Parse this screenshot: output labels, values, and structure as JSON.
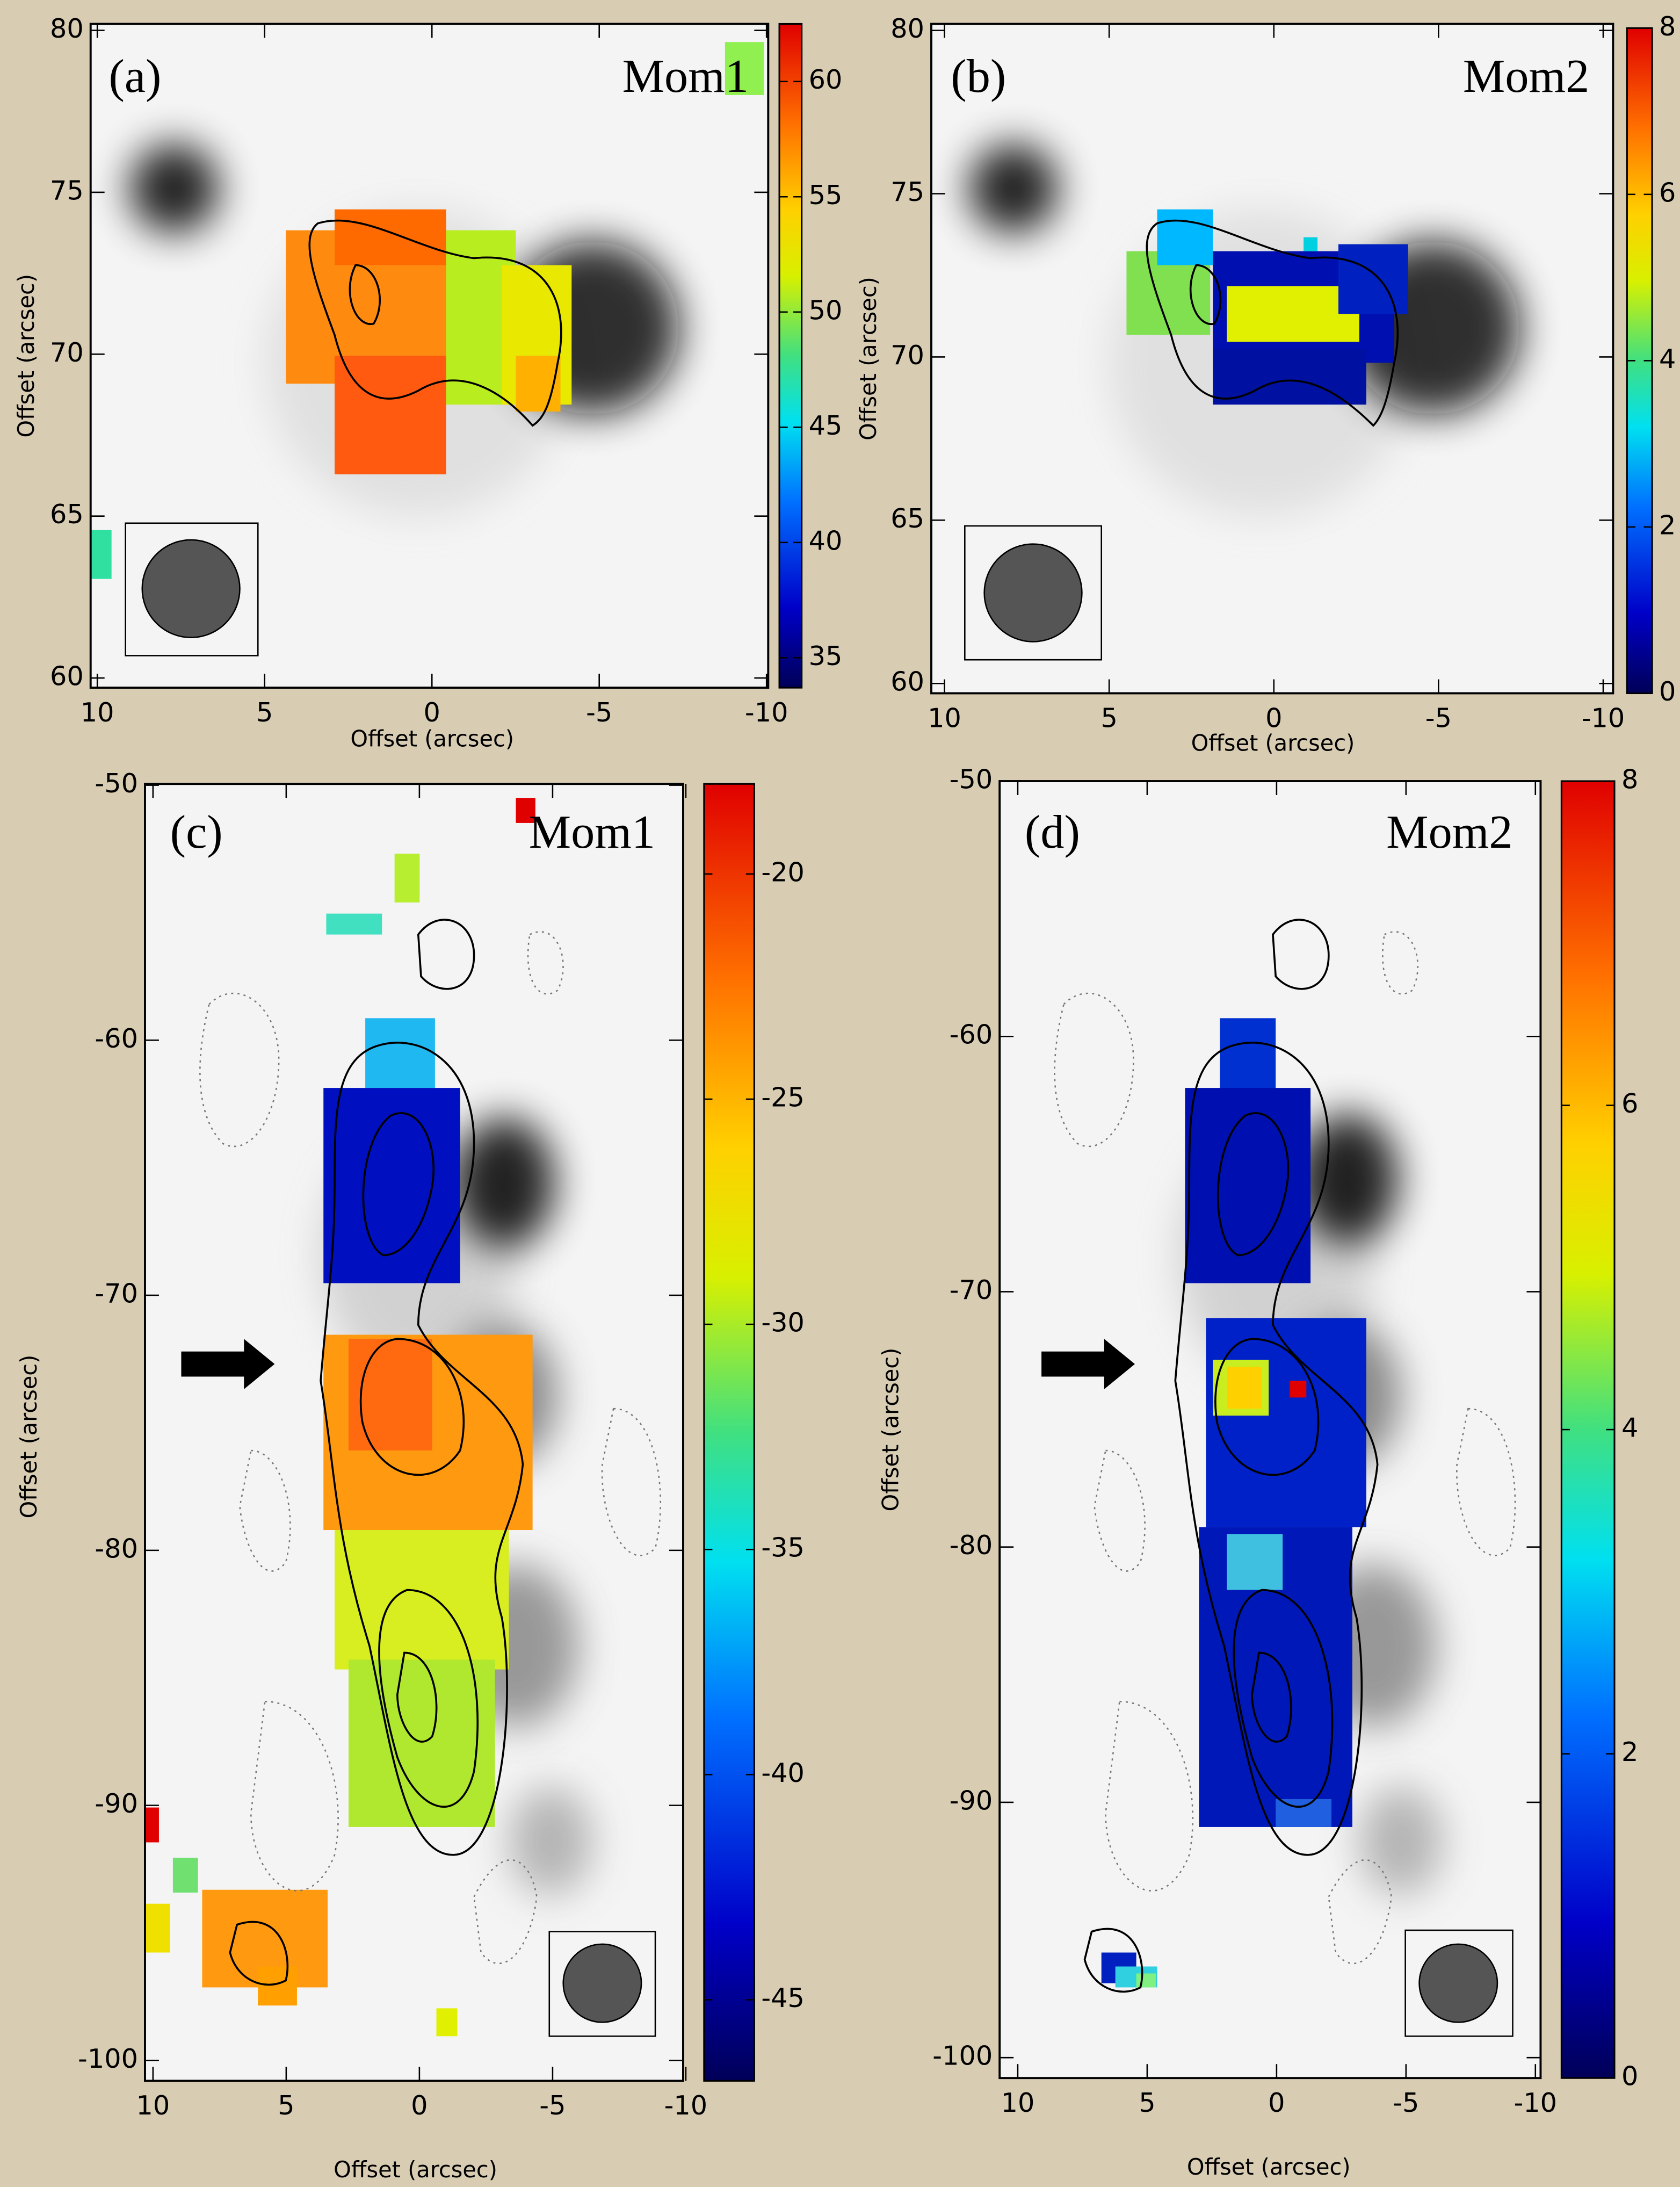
{
  "chart_data": [
    {
      "type": "map",
      "panel_label": "(a)",
      "title": "Mom1",
      "xlabel": "Offset (arcsec)",
      "ylabel": "Offset (arcsec)",
      "xlim": [
        10.2,
        -10.05
      ],
      "ylim": [
        59.7,
        80.2
      ],
      "xticks": [
        10,
        5,
        0,
        -5,
        -10
      ],
      "yticks": [
        60,
        65,
        70,
        75,
        80
      ],
      "colormap": "jet",
      "clim": [
        33.7,
        62.5
      ],
      "cticks": [
        35,
        40,
        45,
        50,
        55,
        60
      ]
    },
    {
      "type": "map",
      "panel_label": "(b)",
      "title": "Mom2",
      "xlabel": "Offset (arcsec)",
      "ylabel": "Offset (arcsec)",
      "xlim": [
        10.4,
        -10.3
      ],
      "ylim": [
        59.7,
        80.2
      ],
      "xticks": [
        10,
        5,
        0,
        -5,
        -10
      ],
      "yticks": [
        60,
        65,
        70,
        75,
        80
      ],
      "colormap": "jet",
      "clim": [
        0,
        8
      ],
      "cticks": [
        0,
        2,
        4,
        6,
        8
      ]
    },
    {
      "type": "map",
      "panel_label": "(c)",
      "title": "Mom1",
      "xlabel": "Offset (arcsec)",
      "ylabel": "Offset (arcsec)",
      "xlim": [
        10.3,
        -9.9
      ],
      "ylim": [
        -100.8,
        -49.95
      ],
      "xticks": [
        10,
        5,
        0,
        -5,
        -10
      ],
      "yticks": [
        -100,
        -90,
        -80,
        -70,
        -60,
        -50
      ],
      "colormap": "jet",
      "clim": [
        -46.8,
        -18.0
      ],
      "cticks": [
        -45,
        -40,
        -35,
        -30,
        -25,
        -20
      ]
    },
    {
      "type": "map",
      "panel_label": "(d)",
      "title": "Mom2",
      "xlabel": "Offset (arcsec)",
      "ylabel": "Offset (arcsec)",
      "xlim": [
        10.7,
        -10.2
      ],
      "ylim": [
        -100.8,
        -50
      ],
      "xticks": [
        10,
        5,
        0,
        -5,
        -10
      ],
      "yticks": [
        -100,
        -90,
        -80,
        -70,
        -60,
        -50
      ],
      "colormap": "jet",
      "clim": [
        0,
        8
      ],
      "cticks": [
        0,
        2,
        4,
        6,
        8
      ]
    }
  ]
}
